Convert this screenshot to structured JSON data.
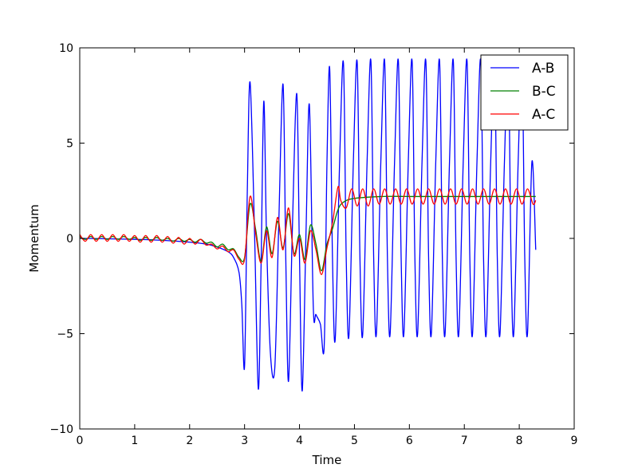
{
  "chart_data": {
    "type": "line",
    "title": "",
    "xlabel": "Time",
    "ylabel": "Momentum",
    "xlim": [
      0,
      9
    ],
    "ylim": [
      -10,
      10
    ],
    "x_ticks": [
      0,
      1,
      2,
      3,
      4,
      5,
      6,
      7,
      8,
      9
    ],
    "x_tick_labels": [
      "0",
      "1",
      "2",
      "3",
      "4",
      "5",
      "6",
      "7",
      "8",
      "9"
    ],
    "y_ticks": [
      -10,
      -5,
      0,
      5,
      10
    ],
    "y_tick_labels": [
      "−10",
      "−5",
      "0",
      "5",
      "10"
    ],
    "grid": false,
    "legend_position": "top-right",
    "series": [
      {
        "name": "A-B",
        "color": "#0000ff",
        "x": [
          0,
          0.5,
          1.0,
          1.5,
          2.0,
          2.3,
          2.5,
          2.7,
          2.8,
          2.9,
          2.95,
          3.0,
          3.05,
          3.1,
          3.18,
          3.25,
          3.3,
          3.35,
          3.4,
          3.47,
          3.55,
          3.62,
          3.7,
          3.75,
          3.8,
          3.87,
          3.95,
          4.0,
          4.05,
          4.12,
          4.18,
          4.25,
          4.3,
          4.38,
          4.45,
          4.5,
          4.55,
          4.6,
          4.65,
          4.73,
          4.8,
          4.85,
          4.9,
          4.98,
          5.05,
          5.1,
          5.15,
          5.23,
          5.3,
          5.35,
          5.4,
          5.48,
          5.55,
          5.6,
          5.65,
          5.73,
          5.8,
          5.85,
          5.9,
          5.98,
          6.05,
          6.1,
          6.15,
          6.23,
          6.3,
          6.35,
          6.4,
          6.48,
          6.55,
          6.6,
          6.65,
          6.73,
          6.8,
          6.85,
          6.9,
          6.98,
          7.05,
          7.1,
          7.15,
          7.23,
          7.3,
          7.35,
          7.4,
          7.48,
          7.55,
          7.6,
          7.65,
          7.73,
          7.8,
          7.85,
          7.9,
          7.98,
          8.05,
          8.1,
          8.15,
          8.23,
          8.3
        ],
        "y": [
          0,
          -0.02,
          -0.05,
          -0.1,
          -0.2,
          -0.3,
          -0.45,
          -0.7,
          -1.0,
          -1.8,
          -3.5,
          -6.7,
          2.5,
          8.2,
          0.5,
          -7.9,
          -1.5,
          7.2,
          0.0,
          -6.0,
          -6.8,
          0.5,
          8.1,
          -1.0,
          -7.5,
          0.5,
          7.6,
          -1.0,
          -8.0,
          0.5,
          7.0,
          -3.5,
          -4.0,
          -4.5,
          -5.6,
          4.0,
          8.9,
          -1.0,
          -5.3,
          4.0,
          9.2,
          -1.0,
          -5.1,
          4.0,
          9.25,
          -1.0,
          -5.05,
          4.0,
          9.3,
          -1.0,
          -5.0,
          4.0,
          9.3,
          -1.0,
          -5.0,
          4.0,
          9.3,
          -1.0,
          -5.0,
          4.0,
          9.3,
          -1.0,
          -5.0,
          4.0,
          9.3,
          -1.0,
          -5.0,
          4.0,
          9.3,
          -1.0,
          -5.0,
          4.0,
          9.3,
          -1.0,
          -5.0,
          4.0,
          9.3,
          -1.0,
          -5.0,
          4.0,
          9.3,
          -1.0,
          -5.0,
          4.0,
          9.3,
          -1.0,
          -5.0,
          4.0,
          9.3,
          -1.0,
          -5.0,
          4.0,
          9.3,
          -1.0,
          -5.0,
          4.0,
          -0.6
        ]
      },
      {
        "name": "B-C",
        "color": "#008000",
        "x": [
          0,
          0.1,
          0.2,
          0.3,
          0.4,
          0.5,
          0.6,
          0.7,
          0.8,
          0.9,
          1.0,
          1.1,
          1.2,
          1.3,
          1.4,
          1.5,
          1.6,
          1.7,
          1.8,
          1.9,
          2.0,
          2.1,
          2.2,
          2.3,
          2.4,
          2.5,
          2.6,
          2.7,
          2.8,
          2.9,
          3.0,
          3.1,
          3.2,
          3.3,
          3.4,
          3.5,
          3.6,
          3.7,
          3.8,
          3.9,
          4.0,
          4.1,
          4.2,
          4.3,
          4.4,
          4.5,
          4.6,
          4.7,
          4.8,
          5.0,
          5.5,
          6.0,
          6.5,
          7.0,
          7.5,
          8.0,
          8.3
        ],
        "y": [
          0.1,
          -0.05,
          0.1,
          -0.05,
          0.1,
          -0.05,
          0.1,
          -0.05,
          0.1,
          -0.05,
          0.05,
          -0.1,
          0.05,
          -0.1,
          0.05,
          -0.1,
          0.0,
          -0.15,
          0.0,
          -0.15,
          -0.05,
          -0.2,
          -0.05,
          -0.25,
          -0.2,
          -0.45,
          -0.3,
          -0.6,
          -0.55,
          -1.0,
          -1.0,
          1.8,
          0.5,
          -1.2,
          0.6,
          -0.8,
          0.9,
          -0.5,
          1.3,
          -0.8,
          0.2,
          -1.1,
          0.7,
          -0.3,
          -1.7,
          -0.3,
          0.5,
          1.5,
          1.9,
          2.1,
          2.2,
          2.2,
          2.2,
          2.2,
          2.2,
          2.2,
          2.2
        ]
      },
      {
        "name": "A-C",
        "color": "#ff0000",
        "x": [
          0,
          0.1,
          0.2,
          0.3,
          0.4,
          0.5,
          0.6,
          0.7,
          0.8,
          0.9,
          1.0,
          1.1,
          1.2,
          1.3,
          1.4,
          1.5,
          1.6,
          1.7,
          1.8,
          1.9,
          2.0,
          2.1,
          2.2,
          2.3,
          2.4,
          2.5,
          2.6,
          2.7,
          2.8,
          2.9,
          3.0,
          3.1,
          3.2,
          3.3,
          3.4,
          3.5,
          3.6,
          3.7,
          3.8,
          3.9,
          4.0,
          4.1,
          4.2,
          4.3,
          4.4,
          4.5,
          4.6,
          4.7,
          4.75,
          4.85,
          4.95,
          5.05,
          5.15,
          5.25,
          5.35,
          5.45,
          5.55,
          5.65,
          5.75,
          5.85,
          5.95,
          6.05,
          6.15,
          6.25,
          6.35,
          6.45,
          6.55,
          6.65,
          6.75,
          6.85,
          6.95,
          7.05,
          7.15,
          7.25,
          7.35,
          7.45,
          7.55,
          7.65,
          7.75,
          7.85,
          7.95,
          8.05,
          8.15,
          8.25,
          8.3
        ],
        "y": [
          0.2,
          -0.15,
          0.2,
          -0.15,
          0.2,
          -0.15,
          0.2,
          -0.15,
          0.2,
          -0.15,
          0.15,
          -0.2,
          0.15,
          -0.2,
          0.15,
          -0.2,
          0.1,
          -0.25,
          0.05,
          -0.3,
          0.0,
          -0.3,
          -0.05,
          -0.35,
          -0.3,
          -0.55,
          -0.4,
          -0.7,
          -0.6,
          -1.1,
          -1.1,
          2.2,
          0.3,
          -1.3,
          0.4,
          -1.0,
          1.1,
          -0.6,
          1.6,
          -0.9,
          0.0,
          -1.3,
          0.4,
          -0.6,
          -1.9,
          -0.5,
          0.8,
          2.7,
          2.0,
          1.6,
          2.6,
          1.7,
          2.6,
          1.7,
          2.6,
          1.8,
          2.6,
          1.8,
          2.6,
          1.8,
          2.6,
          1.8,
          2.6,
          1.8,
          2.6,
          1.8,
          2.6,
          1.8,
          2.6,
          1.8,
          2.6,
          1.8,
          2.6,
          1.8,
          2.6,
          1.8,
          2.6,
          1.8,
          2.6,
          1.8,
          2.6,
          1.8,
          2.6,
          1.8,
          2.0
        ]
      }
    ]
  }
}
